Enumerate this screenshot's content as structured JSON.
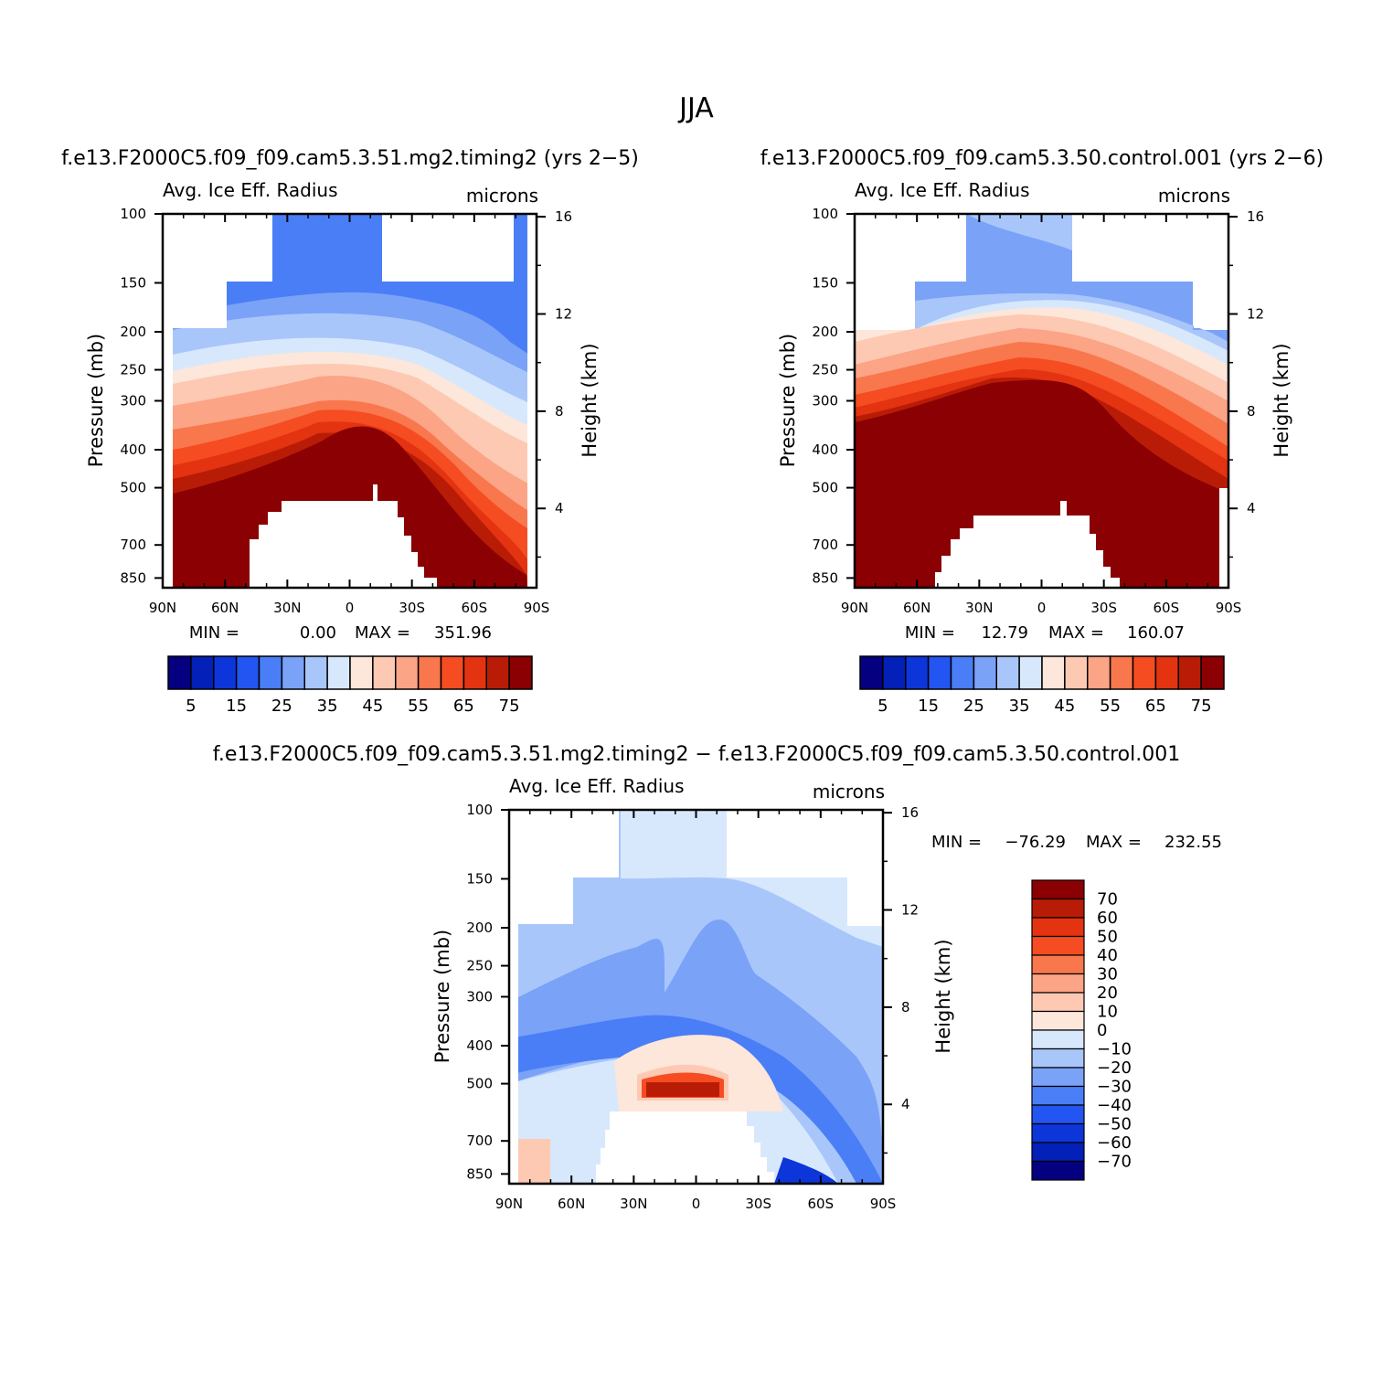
{
  "page": {
    "season_title": "JJA",
    "panel1_title": "f.e13.F2000C5.f09_f09.cam5.3.51.mg2.timing2 (yrs 2−5)",
    "panel2_title": "f.e13.F2000C5.f09_f09.cam5.3.50.control.001 (yrs 2−6)",
    "diff_title": "f.e13.F2000C5.f09_f09.cam5.3.51.mg2.timing2 − f.e13.F2000C5.f09_f09.cam5.3.50.control.001"
  },
  "chart_data": [
    {
      "id": "p1",
      "type": "contour",
      "variable": "Avg. Ice Eff. Radius",
      "units": "microns",
      "ylabel": "Pressure (mb)",
      "ylabel_right": "Height (km)",
      "x_ticks": [
        "90N",
        "60N",
        "30N",
        "0",
        "30S",
        "60S",
        "90S"
      ],
      "y_ticks": [
        "100",
        "150",
        "200",
        "250",
        "300",
        "400",
        "500",
        "700",
        "850"
      ],
      "height_ticks": [
        "16",
        "12",
        "8",
        "4"
      ],
      "ylim": [
        100,
        900
      ],
      "min_label": "MIN =",
      "min_value": "0.00",
      "max_label": "MAX =",
      "max_value": "351.96",
      "levels": [
        0,
        5,
        10,
        15,
        20,
        25,
        30,
        35,
        40,
        45,
        50,
        55,
        60,
        65,
        70,
        75,
        80
      ],
      "colorbar_labels": [
        "5",
        "15",
        "25",
        "35",
        "45",
        "55",
        "65",
        "75"
      ]
    },
    {
      "id": "p2",
      "type": "contour",
      "variable": "Avg. Ice Eff. Radius",
      "units": "microns",
      "ylabel": "Pressure (mb)",
      "ylabel_right": "Height (km)",
      "x_ticks": [
        "90N",
        "60N",
        "30N",
        "0",
        "30S",
        "60S",
        "90S"
      ],
      "y_ticks": [
        "100",
        "150",
        "200",
        "250",
        "300",
        "400",
        "500",
        "700",
        "850"
      ],
      "height_ticks": [
        "16",
        "12",
        "8",
        "4"
      ],
      "ylim": [
        100,
        900
      ],
      "min_label": "MIN =",
      "min_value": "12.79",
      "max_label": "MAX =",
      "max_value": "160.07",
      "levels": [
        0,
        5,
        10,
        15,
        20,
        25,
        30,
        35,
        40,
        45,
        50,
        55,
        60,
        65,
        70,
        75,
        80
      ],
      "colorbar_labels": [
        "5",
        "15",
        "25",
        "35",
        "45",
        "55",
        "65",
        "75"
      ]
    },
    {
      "id": "p3",
      "type": "contour",
      "variable": "Avg. Ice Eff. Radius",
      "units": "microns",
      "ylabel": "Pressure (mb)",
      "ylabel_right": "Height (km)",
      "x_ticks": [
        "90N",
        "60N",
        "30N",
        "0",
        "30S",
        "60S",
        "90S"
      ],
      "y_ticks": [
        "100",
        "150",
        "200",
        "250",
        "300",
        "400",
        "500",
        "700",
        "850"
      ],
      "height_ticks": [
        "16",
        "12",
        "8",
        "4"
      ],
      "ylim": [
        100,
        900
      ],
      "min_label": "MIN =",
      "min_value": "−76.29",
      "max_label": "MAX =",
      "max_value": "232.55",
      "levels": [
        -70,
        -60,
        -50,
        -40,
        -30,
        -20,
        -10,
        0,
        10,
        20,
        30,
        40,
        50,
        60,
        70
      ],
      "colorbar_labels": [
        "70",
        "60",
        "50",
        "40",
        "30",
        "20",
        "10",
        "0",
        "−10",
        "−20",
        "−30",
        "−40",
        "−50",
        "−60",
        "−70"
      ]
    }
  ],
  "colors": {
    "abs_scale": [
      "#04007f",
      "#0320b8",
      "#0c36d9",
      "#2355f2",
      "#4a7ef7",
      "#7aa2f7",
      "#a9c6fb",
      "#d7e8fd",
      "#fde6da",
      "#fdc9b2",
      "#fba486",
      "#f9774d",
      "#f54c22",
      "#e33310",
      "#b91c06",
      "#8a0003"
    ],
    "diff_scale": [
      "#8a0003",
      "#b91c06",
      "#e33310",
      "#f54c22",
      "#f9774d",
      "#fba486",
      "#fdc9b2",
      "#fde6da",
      "#d7e8fd",
      "#a9c6fb",
      "#7aa2f7",
      "#4a7ef7",
      "#2355f2",
      "#0c36d9",
      "#0320b8",
      "#04007f"
    ]
  }
}
